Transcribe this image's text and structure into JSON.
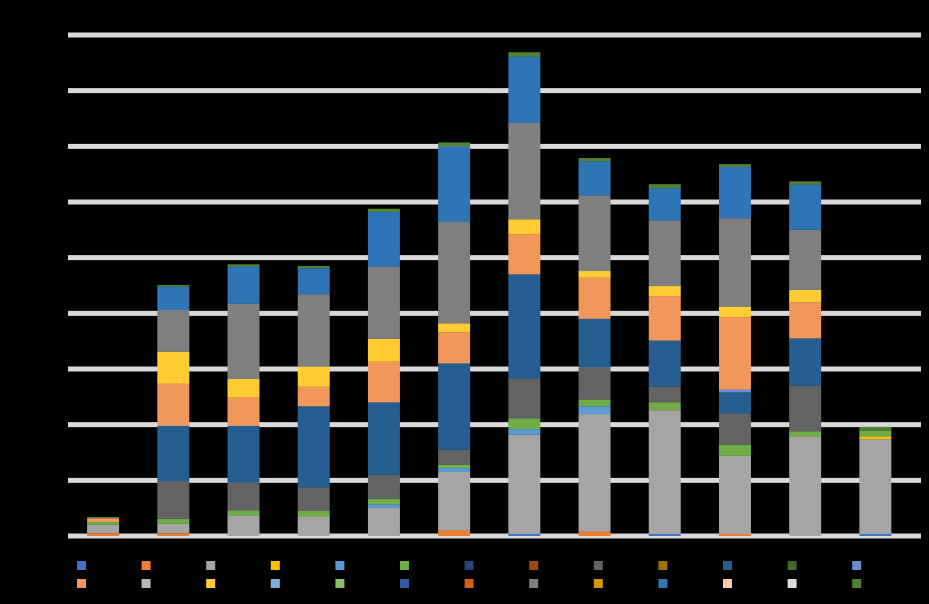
{
  "chart_data": {
    "type": "bar",
    "stacked": true,
    "title": "",
    "xlabel": "",
    "ylabel": "",
    "ylim": [
      0,
      9
    ],
    "grid": true,
    "legend_position": "bottom",
    "categories": [
      "",
      "",
      "",
      "",
      "",
      "",
      "",
      "",
      "",
      "",
      "",
      ""
    ],
    "series": [
      {
        "color": "#4472c4",
        "values": [
          0.0,
          0.0,
          0.0,
          0.0,
          0.0,
          0.0,
          0.04,
          0.0,
          0.04,
          0.0,
          0.0,
          0.04
        ]
      },
      {
        "color": "#ed7d31",
        "values": [
          0.05,
          0.05,
          0.0,
          0.0,
          0.0,
          0.1,
          0.0,
          0.08,
          0.0,
          0.04,
          0.0,
          0.0
        ]
      },
      {
        "color": "#a5a5a5",
        "values": [
          0.15,
          0.17,
          0.37,
          0.35,
          0.51,
          1.05,
          1.78,
          2.11,
          2.22,
          1.4,
          1.79,
          1.7
        ]
      },
      {
        "color": "#ffc000",
        "values": [
          0.0,
          0.0,
          0.0,
          0.0,
          0.0,
          0.0,
          0.0,
          0.0,
          0.0,
          0.0,
          0.0,
          0.05
        ]
      },
      {
        "color": "#5b9bd5",
        "values": [
          0.0,
          0.0,
          0.0,
          0.0,
          0.06,
          0.07,
          0.1,
          0.14,
          0.0,
          0.0,
          0.0,
          0.0
        ]
      },
      {
        "color": "#70ad47",
        "values": [
          0.05,
          0.09,
          0.09,
          0.1,
          0.1,
          0.06,
          0.19,
          0.12,
          0.14,
          0.2,
          0.09,
          0.1
        ]
      },
      {
        "color": "#264478",
        "values": [
          0.0,
          0.0,
          0.0,
          0.0,
          0.0,
          0.0,
          0.0,
          0.0,
          0.0,
          0.0,
          0.0,
          0.0
        ]
      },
      {
        "color": "#9e480e",
        "values": [
          0.0,
          0.0,
          0.0,
          0.0,
          0.0,
          0.0,
          0.0,
          0.0,
          0.0,
          0.0,
          0.0,
          0.0
        ]
      },
      {
        "color": "#636363",
        "values": [
          0.0,
          0.67,
          0.5,
          0.42,
          0.43,
          0.27,
          0.72,
          0.58,
          0.29,
          0.56,
          0.82,
          0.0
        ]
      },
      {
        "color": "#997300",
        "values": [
          0.0,
          0.0,
          0.0,
          0.0,
          0.0,
          0.0,
          0.0,
          0.0,
          0.0,
          0.0,
          0.0,
          0.0
        ]
      },
      {
        "color": "#255e91",
        "values": [
          0.0,
          1.0,
          1.02,
          1.46,
          1.3,
          1.55,
          1.87,
          0.87,
          0.82,
          0.38,
          0.85,
          0.0
        ]
      },
      {
        "color": "#43682b",
        "values": [
          0.0,
          0.0,
          0.0,
          0.0,
          0.0,
          0.0,
          0.0,
          0.0,
          0.0,
          0.0,
          0.0,
          0.0
        ]
      },
      {
        "color": "#698ed0",
        "values": [
          0.0,
          0.0,
          0.0,
          0.0,
          0.0,
          0.0,
          0.0,
          0.0,
          0.0,
          0.05,
          0.0,
          0.0
        ]
      },
      {
        "color": "#f1975a",
        "values": [
          0.07,
          0.76,
          0.51,
          0.35,
          0.73,
          0.56,
          0.72,
          0.74,
          0.8,
          1.3,
          0.65,
          0.0
        ]
      },
      {
        "color": "#b7b7b7",
        "values": [
          0.0,
          0.0,
          0.0,
          0.0,
          0.0,
          0.0,
          0.0,
          0.0,
          0.0,
          0.0,
          0.0,
          0.0
        ]
      },
      {
        "color": "#ffcd33",
        "values": [
          0.0,
          0.57,
          0.33,
          0.36,
          0.41,
          0.16,
          0.27,
          0.12,
          0.18,
          0.19,
          0.22,
          0.0
        ]
      },
      {
        "color": "#7cafdd",
        "values": [
          0.0,
          0.0,
          0.0,
          0.0,
          0.0,
          0.0,
          0.0,
          0.0,
          0.0,
          0.0,
          0.0,
          0.0
        ]
      },
      {
        "color": "#8cc168",
        "values": [
          0.0,
          0.0,
          0.0,
          0.0,
          0.0,
          0.0,
          0.0,
          0.0,
          0.0,
          0.0,
          0.0,
          0.0
        ]
      },
      {
        "color": "#335aa1",
        "values": [
          0.0,
          0.0,
          0.0,
          0.0,
          0.0,
          0.0,
          0.0,
          0.0,
          0.0,
          0.0,
          0.0,
          0.0
        ]
      },
      {
        "color": "#d26012",
        "values": [
          0.0,
          0.0,
          0.0,
          0.0,
          0.0,
          0.0,
          0.0,
          0.0,
          0.0,
          0.0,
          0.0,
          0.0
        ]
      },
      {
        "color": "#7f7f7f",
        "values": [
          0.0,
          0.75,
          1.35,
          1.3,
          1.3,
          1.82,
          1.73,
          1.36,
          1.18,
          1.59,
          1.08,
          0.0
        ]
      },
      {
        "color": "#cc9a00",
        "values": [
          0.0,
          0.0,
          0.0,
          0.0,
          0.0,
          0.0,
          0.0,
          0.0,
          0.0,
          0.0,
          0.0,
          0.0
        ]
      },
      {
        "color": "#2e75b6",
        "values": [
          0.0,
          0.42,
          0.67,
          0.47,
          0.98,
          1.36,
          1.19,
          0.61,
          0.58,
          0.92,
          0.81,
          0.0
        ]
      },
      {
        "color": "#f8cbad",
        "values": [
          0.0,
          0.0,
          0.0,
          0.0,
          0.0,
          0.0,
          0.0,
          0.0,
          0.0,
          0.0,
          0.0,
          0.0
        ]
      },
      {
        "color": "#dbdbdb",
        "values": [
          0.0,
          0.0,
          0.0,
          0.0,
          0.0,
          0.0,
          0.0,
          0.0,
          0.0,
          0.0,
          0.0,
          0.0
        ]
      },
      {
        "color": "#548235",
        "values": [
          0.02,
          0.03,
          0.04,
          0.04,
          0.06,
          0.07,
          0.08,
          0.06,
          0.07,
          0.05,
          0.06,
          0.07
        ]
      }
    ]
  }
}
